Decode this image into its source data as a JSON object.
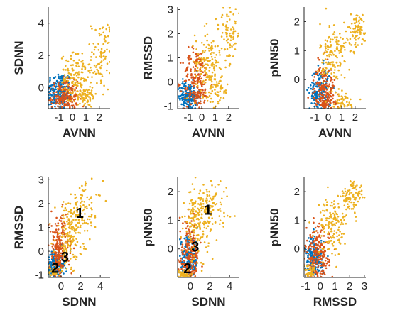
{
  "figure": {
    "colors": {
      "blue": "#0072BD",
      "orange": "#D95319",
      "yellow": "#EDB120",
      "axis": "#262626",
      "background": "#ffffff"
    }
  },
  "chart_data": [
    {
      "type": "scatter",
      "xlabel": "AVNN",
      "ylabel": "SDNN",
      "xlim": [
        -1.8,
        2.8
      ],
      "ylim": [
        -1.3,
        5.0
      ],
      "xticks": [
        -1,
        0,
        1,
        2
      ],
      "yticks": [
        0,
        2,
        4
      ],
      "grid": false,
      "annotations": [],
      "clusters": [
        {
          "color": "blue",
          "cx": -1.0,
          "cy": -0.2,
          "sx": 0.5,
          "sy": 0.6,
          "n": 220
        },
        {
          "color": "orange",
          "cx": -0.6,
          "cy": -0.6,
          "sx": 0.5,
          "sy": 0.5,
          "n": 220
        },
        {
          "color": "yellow",
          "cx": 0.3,
          "cy": 0.5,
          "sx": 0.6,
          "sy": 0.8,
          "n": 150
        },
        {
          "color": "yellow",
          "cx": 2.2,
          "cy": 2.0,
          "sx": 0.4,
          "sy": 1.1,
          "n": 90
        },
        {
          "color": "yellow",
          "cx": 1.0,
          "cy": -0.6,
          "sx": 0.4,
          "sy": 0.3,
          "n": 50
        }
      ]
    },
    {
      "type": "scatter",
      "xlabel": "AVNN",
      "ylabel": "RMSSD",
      "xlim": [
        -1.8,
        2.8
      ],
      "ylim": [
        -1.1,
        3.1
      ],
      "xticks": [
        -1,
        0,
        1,
        2
      ],
      "yticks": [
        -1,
        0,
        1,
        2,
        3
      ],
      "grid": false,
      "annotations": [],
      "clusters": [
        {
          "color": "blue",
          "cx": -1.0,
          "cy": -0.6,
          "sx": 0.4,
          "sy": 0.3,
          "n": 200
        },
        {
          "color": "orange",
          "cx": -0.4,
          "cy": 0.0,
          "sx": 0.5,
          "sy": 0.7,
          "n": 220
        },
        {
          "color": "yellow",
          "cx": 0.5,
          "cy": 0.8,
          "sx": 0.5,
          "sy": 0.7,
          "n": 150
        },
        {
          "color": "yellow",
          "cx": 2.1,
          "cy": 2.0,
          "sx": 0.4,
          "sy": 0.6,
          "n": 90
        },
        {
          "color": "yellow",
          "cx": 1.2,
          "cy": -0.3,
          "sx": 0.4,
          "sy": 0.3,
          "n": 50
        }
      ]
    },
    {
      "type": "scatter",
      "xlabel": "AVNN",
      "ylabel": "pNN50",
      "xlim": [
        -1.8,
        2.8
      ],
      "ylim": [
        -1.0,
        2.5
      ],
      "xticks": [
        -1,
        0,
        1,
        2
      ],
      "yticks": [
        0,
        1,
        2
      ],
      "grid": false,
      "annotations": [],
      "clusters": [
        {
          "color": "blue",
          "cx": -0.6,
          "cy": -0.4,
          "sx": 0.4,
          "sy": 0.4,
          "n": 180
        },
        {
          "color": "orange",
          "cx": -0.3,
          "cy": -0.5,
          "sx": 0.4,
          "sy": 0.5,
          "n": 220
        },
        {
          "color": "yellow",
          "cx": 0.4,
          "cy": 0.8,
          "sx": 0.5,
          "sy": 0.6,
          "n": 150
        },
        {
          "color": "yellow",
          "cx": 2.2,
          "cy": 1.7,
          "sx": 0.4,
          "sy": 0.3,
          "n": 90
        },
        {
          "color": "yellow",
          "cx": 1.0,
          "cy": -0.8,
          "sx": 0.5,
          "sy": 0.2,
          "n": 50
        }
      ]
    },
    {
      "type": "scatter",
      "xlabel": "SDNN",
      "ylabel": "RMSSD",
      "xlim": [
        -1.3,
        5.0
      ],
      "ylim": [
        -1.1,
        3.1
      ],
      "xticks": [
        0,
        2,
        4
      ],
      "yticks": [
        -1,
        0,
        1,
        2,
        3
      ],
      "grid": false,
      "annotations": [
        {
          "text": "1",
          "x": 1.9,
          "y": 1.4
        },
        {
          "text": "2",
          "x": -0.6,
          "y": -0.9
        },
        {
          "text": "3",
          "x": 0.4,
          "y": -0.45
        }
      ],
      "clusters": [
        {
          "color": "blue",
          "cx": -0.5,
          "cy": -0.6,
          "sx": 0.4,
          "sy": 0.3,
          "n": 200
        },
        {
          "color": "orange",
          "cx": -0.2,
          "cy": 0.0,
          "sx": 0.5,
          "sy": 0.7,
          "n": 220
        },
        {
          "color": "yellow",
          "cx": 0.8,
          "cy": 0.6,
          "sx": 0.7,
          "sy": 0.7,
          "n": 150
        },
        {
          "color": "yellow",
          "cx": 2.4,
          "cy": 1.8,
          "sx": 0.9,
          "sy": 0.6,
          "n": 90
        },
        {
          "color": "yellow",
          "cx": -0.8,
          "cy": -0.9,
          "sx": 0.3,
          "sy": 0.15,
          "n": 50
        }
      ]
    },
    {
      "type": "scatter",
      "xlabel": "SDNN",
      "ylabel": "pNN50",
      "xlim": [
        -1.3,
        5.0
      ],
      "ylim": [
        -1.0,
        2.5
      ],
      "xticks": [
        0,
        2,
        4
      ],
      "yticks": [
        0,
        1,
        2
      ],
      "grid": false,
      "annotations": [
        {
          "text": "1",
          "x": 1.8,
          "y": 1.2
        },
        {
          "text": "2",
          "x": -0.3,
          "y": -0.85
        },
        {
          "text": "3",
          "x": 0.5,
          "y": -0.1
        }
      ],
      "clusters": [
        {
          "color": "blue",
          "cx": -0.2,
          "cy": -0.4,
          "sx": 0.5,
          "sy": 0.4,
          "n": 180
        },
        {
          "color": "orange",
          "cx": -0.1,
          "cy": -0.3,
          "sx": 0.5,
          "sy": 0.6,
          "n": 220
        },
        {
          "color": "yellow",
          "cx": 0.7,
          "cy": 0.9,
          "sx": 0.6,
          "sy": 0.6,
          "n": 150
        },
        {
          "color": "yellow",
          "cx": 2.0,
          "cy": 1.6,
          "sx": 1.0,
          "sy": 0.4,
          "n": 90
        },
        {
          "color": "yellow",
          "cx": -0.6,
          "cy": -0.9,
          "sx": 0.3,
          "sy": 0.1,
          "n": 50
        }
      ]
    },
    {
      "type": "scatter",
      "xlabel": "RMSSD",
      "ylabel": "pNN50",
      "xlim": [
        -1.1,
        3.1
      ],
      "ylim": [
        -1.0,
        2.5
      ],
      "xticks": [
        -1,
        0,
        1,
        2,
        3
      ],
      "yticks": [
        0,
        1,
        2
      ],
      "grid": false,
      "annotations": [],
      "clusters": [
        {
          "color": "blue",
          "cx": -0.4,
          "cy": -0.4,
          "sx": 0.3,
          "sy": 0.4,
          "n": 180
        },
        {
          "color": "orange",
          "cx": -0.2,
          "cy": -0.3,
          "sx": 0.4,
          "sy": 0.5,
          "n": 220
        },
        {
          "color": "yellow",
          "cx": 0.8,
          "cy": 0.8,
          "sx": 0.5,
          "sy": 0.5,
          "n": 150
        },
        {
          "color": "yellow",
          "cx": 2.2,
          "cy": 1.8,
          "sx": 0.4,
          "sy": 0.3,
          "n": 90
        },
        {
          "color": "yellow",
          "cx": -0.7,
          "cy": -0.8,
          "sx": 0.2,
          "sy": 0.15,
          "n": 50
        }
      ]
    }
  ]
}
